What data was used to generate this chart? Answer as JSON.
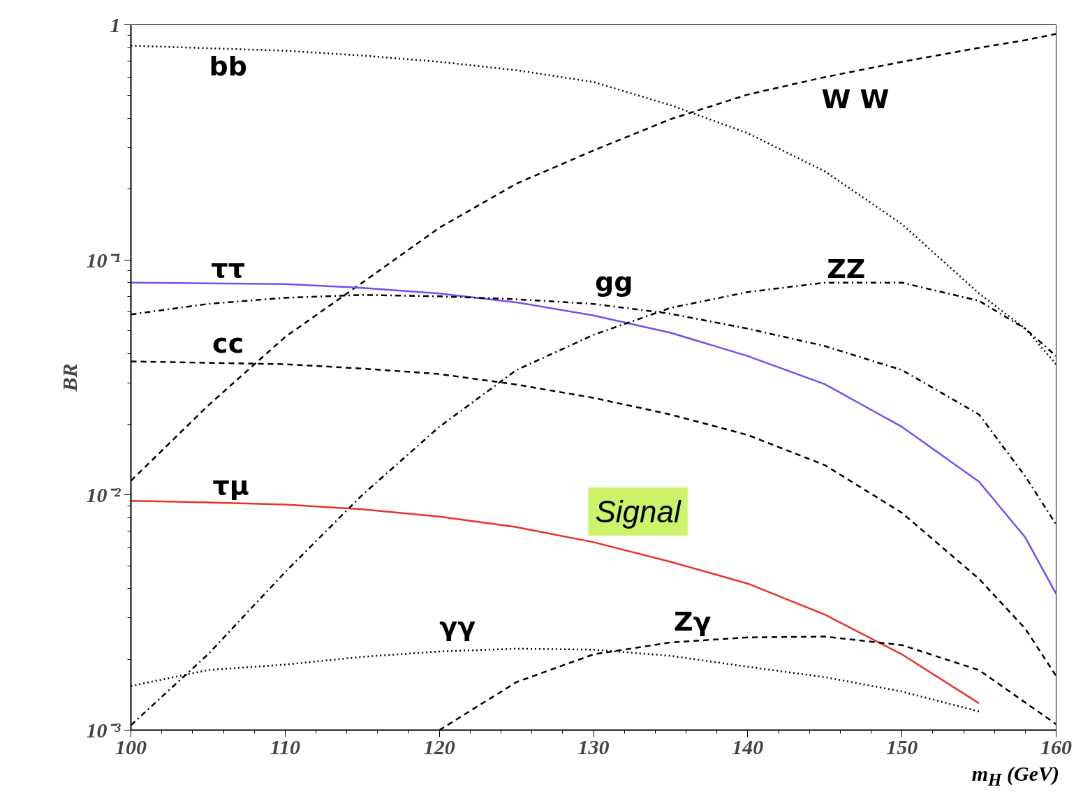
{
  "chart_data": {
    "type": "line",
    "xlabel": "m$_{H}$ (GeV)",
    "ylabel": "BR",
    "log": "y",
    "grid": false,
    "xlim": [
      100,
      160
    ],
    "xticks": [
      100,
      110,
      120,
      130,
      140,
      150,
      160
    ],
    "ylim": [
      0.001,
      1
    ],
    "yticks": [
      {
        "value": 0.001,
        "label": "10⁻³"
      },
      {
        "value": 0.01,
        "label": "10⁻²"
      },
      {
        "value": 0.1,
        "label": "10⁻¹"
      },
      1
    ],
    "x": [
      100,
      105,
      110,
      115,
      120,
      125,
      130,
      135,
      140,
      145,
      150,
      155,
      158,
      160
    ],
    "series": [
      {
        "name": "bb",
        "color": "#000000",
        "line_style": "dotted",
        "values": [
          0.815,
          0.795,
          0.776,
          0.74,
          0.696,
          0.641,
          0.571,
          0.455,
          0.346,
          0.238,
          0.142,
          0.072,
          0.051,
          0.036
        ]
      },
      {
        "name": "W W",
        "color": "#000000",
        "line_style": "dashed",
        "values": [
          0.0115,
          0.024,
          0.047,
          0.08,
          0.137,
          0.211,
          0.292,
          0.397,
          0.505,
          0.599,
          0.696,
          0.798,
          0.86,
          0.915
        ]
      },
      {
        "name": "ττ",
        "color": "#7b4cf0",
        "line_style": "solid",
        "values": [
          0.08,
          0.0795,
          0.079,
          0.076,
          0.072,
          0.066,
          0.058,
          0.049,
          0.039,
          0.0296,
          0.0195,
          0.0114,
          0.0066,
          0.0038
        ]
      },
      {
        "name": "gg",
        "color": "#000000",
        "line_style": "dashdot",
        "values": [
          0.0586,
          0.065,
          0.069,
          0.071,
          0.07,
          0.068,
          0.065,
          0.059,
          0.051,
          0.043,
          0.034,
          0.022,
          0.012,
          0.0075
        ]
      },
      {
        "name": "ZZ",
        "color": "#000000",
        "line_style": "dashdot",
        "values": [
          0.00105,
          0.0021,
          0.0047,
          0.01,
          0.0195,
          0.034,
          0.048,
          0.0625,
          0.073,
          0.08,
          0.08,
          0.067,
          0.051,
          0.039
        ]
      },
      {
        "name": "cc",
        "color": "#000000",
        "line_style": "dashed",
        "values": [
          0.037,
          0.0365,
          0.036,
          0.0345,
          0.0327,
          0.0295,
          0.0259,
          0.022,
          0.018,
          0.0134,
          0.0084,
          0.0044,
          0.0027,
          0.0017
        ]
      },
      {
        "name": "τμ",
        "color": "#e8322a",
        "line_style": "solid",
        "values": [
          0.00944,
          0.0093,
          0.0091,
          0.0087,
          0.0081,
          0.0073,
          0.0063,
          0.0052,
          0.0042,
          0.0031,
          0.0021,
          0.0013,
          null,
          null
        ]
      },
      {
        "name": "γγ",
        "color": "#000000",
        "line_style": "dotted",
        "values": [
          0.00154,
          0.0018,
          0.0019,
          0.00205,
          0.00216,
          0.00222,
          0.0022,
          0.00207,
          0.00186,
          0.00168,
          0.00146,
          0.0012,
          null,
          null
        ]
      },
      {
        "name": "Zγ",
        "color": "#000000",
        "line_style": "dashed",
        "x": [
          120,
          125,
          130,
          135,
          140,
          145,
          150,
          155,
          160
        ],
        "values": [
          0.001,
          0.0016,
          0.0021,
          0.00236,
          0.00248,
          0.0025,
          0.0023,
          0.0018,
          0.00106
        ]
      }
    ],
    "annotations": [
      "Signal"
    ]
  }
}
